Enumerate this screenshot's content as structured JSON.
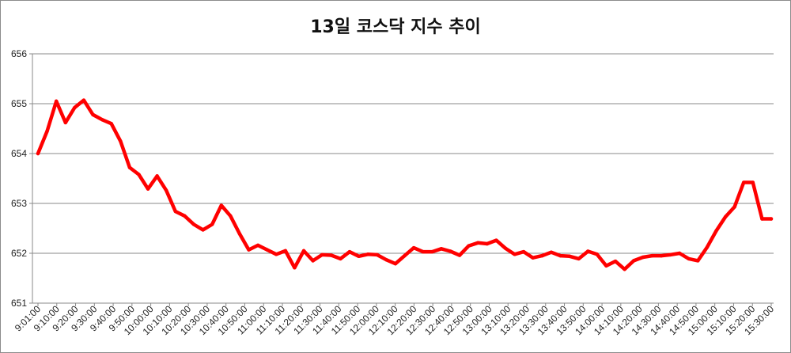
{
  "chart_data": {
    "type": "line",
    "title": "13일 코스닥 지수 추이",
    "xlabel": "",
    "ylabel": "",
    "ylim": [
      651,
      656
    ],
    "yticks": [
      651,
      652,
      653,
      654,
      655,
      656
    ],
    "xtick_labels": [
      "9:01:00",
      "9:10:00",
      "9:20:00",
      "9:30:00",
      "9:40:00",
      "9:50:00",
      "10:00:00",
      "10:10:00",
      "10:20:00",
      "10:30:00",
      "10:40:00",
      "10:50:00",
      "11:00:00",
      "11:10:00",
      "11:20:00",
      "11:30:00",
      "11:40:00",
      "11:50:00",
      "12:00:00",
      "12:10:00",
      "12:20:00",
      "12:30:00",
      "12:40:00",
      "12:50:00",
      "13:00:00",
      "13:10:00",
      "13:20:00",
      "13:30:00",
      "13:40:00",
      "13:50:00",
      "14:00:00",
      "14:10:00",
      "14:20:00",
      "14:30:00",
      "14:40:00",
      "14:50:00",
      "15:00:00",
      "15:10:00",
      "15:20:00",
      "15:30:00"
    ],
    "grid": true,
    "legend": "none",
    "series": [
      {
        "color": "#ff0000",
        "values": [
          654.0,
          654.45,
          655.05,
          654.62,
          654.92,
          655.07,
          654.78,
          654.68,
          654.6,
          654.25,
          653.72,
          653.58,
          653.29,
          653.55,
          653.26,
          652.84,
          652.75,
          652.58,
          652.47,
          652.58,
          652.96,
          652.75,
          652.39,
          652.07,
          652.16,
          652.07,
          651.98,
          652.05,
          651.71,
          652.05,
          651.85,
          651.97,
          651.96,
          651.89,
          652.03,
          651.94,
          651.98,
          651.97,
          651.87,
          651.79,
          651.95,
          652.11,
          652.03,
          652.03,
          652.09,
          652.04,
          651.96,
          652.15,
          652.21,
          652.19,
          652.26,
          652.1,
          651.98,
          652.03,
          651.91,
          651.95,
          652.02,
          651.95,
          651.94,
          651.89,
          652.04,
          651.98,
          651.75,
          651.84,
          651.68,
          651.85,
          651.92,
          651.95,
          651.95,
          651.97,
          652.0,
          651.89,
          651.85,
          652.12,
          652.45,
          652.73,
          652.93,
          653.42,
          653.42,
          652.69,
          652.69
        ]
      }
    ]
  }
}
